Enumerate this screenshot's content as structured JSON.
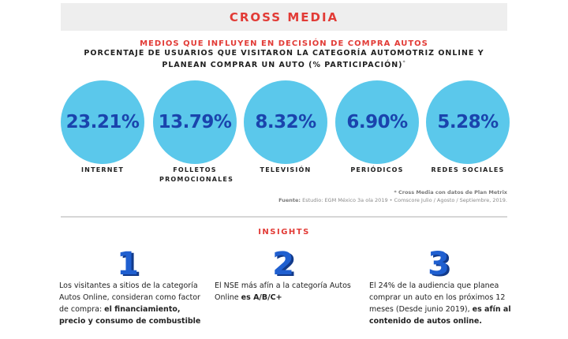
{
  "header": {
    "title": "CROSS MEDIA",
    "subtitle": "MEDIOS QUE INFLUYEN EN DECISIÓN DE COMPRA AUTOS",
    "description": "PORCENTAJE DE USUARIOS QUE VISITARON LA CATEGORÍA AUTOMOTRIZ ONLINE Y PLANEAN COMPRAR UN AUTO (% PARTICIPACIÓN)",
    "description_marker": "*"
  },
  "chart_data": {
    "type": "bubble",
    "categories": [
      "INTERNET",
      "FOLLETOS PROMOCIONALES",
      "TELEVISIÓN",
      "PERIÓDICOS",
      "REDES SOCIALES"
    ],
    "values": [
      23.21,
      13.79,
      8.32,
      6.9,
      5.28
    ],
    "value_labels": [
      "23.21%",
      "13.79%",
      "8.32%",
      "6.90%",
      "5.28%"
    ],
    "unit": "%",
    "circle_color": "#5bc8eb",
    "value_color": "#1a44ad"
  },
  "notes": {
    "cross_media": "* Cross Media con datos de Plan Metrix",
    "source_label": "Fuente:",
    "source_text": "Estudio: EGM México 3a ola 2019 • Comscore Julio / Agosto / Septiembre, 2019."
  },
  "insights": {
    "title": "INSIGHTS",
    "items": [
      {
        "number": "1",
        "text_before": "Los visitantes a sitios de la categoría Autos Online, consideran como factor de compra: ",
        "text_bold": "el financiamiento, precio y consumo de combustible",
        "text_after": ""
      },
      {
        "number": "2",
        "text_before": "El NSE más afín a la categoría Autos Online ",
        "text_bold": "es A/B/C+",
        "text_after": ""
      },
      {
        "number": "3",
        "text_before": "El 24% de la audiencia que planea comprar un auto en los próximos 12 meses (Desde junio 2019), ",
        "text_bold": "es afín al contenido de autos online.",
        "text_after": ""
      }
    ]
  },
  "colors": {
    "accent_red": "#e23b36",
    "number_blue": "#1f5fd0"
  }
}
